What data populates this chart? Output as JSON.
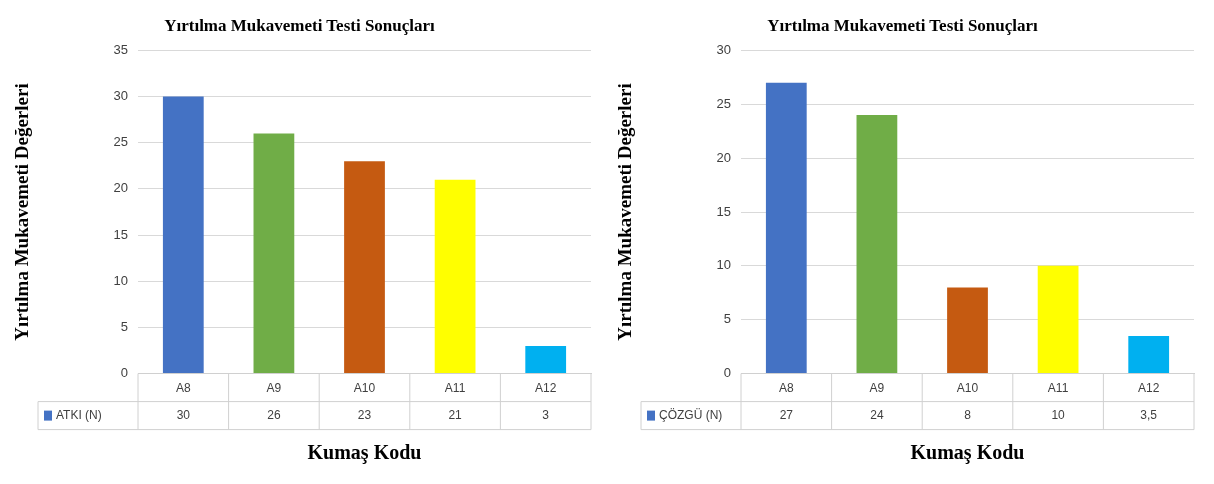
{
  "chart_data": [
    {
      "type": "bar",
      "title": "Yırtılma Mukavemeti Testi Sonuçları",
      "ylabel": "Yırtılma Mukavemeti Değerleri",
      "xlabel": "Kumaş Kodu",
      "categories": [
        "A8",
        "A9",
        "A10",
        "A11",
        "A12"
      ],
      "series": [
        {
          "name": "ATKI (N)",
          "color": "#4472c4",
          "colors": [
            "#4472c4",
            "#70ad47",
            "#c55a11",
            "#ffff00",
            "#00b0f0"
          ],
          "values": [
            30,
            26,
            23,
            21,
            3
          ]
        }
      ],
      "data_labels": true,
      "ylim": [
        0,
        35
      ],
      "yticks": [
        0,
        5,
        10,
        15,
        20,
        25,
        30,
        35
      ],
      "grid": "y"
    },
    {
      "type": "bar",
      "title": "Yırtılma Mukavemeti Testi Sonuçları",
      "ylabel": "Yırtılma Mukavemeti Değerleri",
      "xlabel": "Kumaş Kodu",
      "categories": [
        "A8",
        "A9",
        "A10",
        "A11",
        "A12"
      ],
      "series": [
        {
          "name": "ÇÖZGÜ (N)",
          "color": "#4472c4",
          "colors": [
            "#4472c4",
            "#70ad47",
            "#c55a11",
            "#ffff00",
            "#00b0f0"
          ],
          "values": [
            27,
            24,
            8,
            10,
            3.5
          ],
          "value_labels": [
            "27",
            "24",
            "8",
            "10",
            "3,5"
          ]
        }
      ],
      "ylim": [
        0,
        30
      ],
      "yticks": [
        0,
        5,
        10,
        15,
        20,
        25,
        30
      ],
      "grid": "y"
    }
  ]
}
